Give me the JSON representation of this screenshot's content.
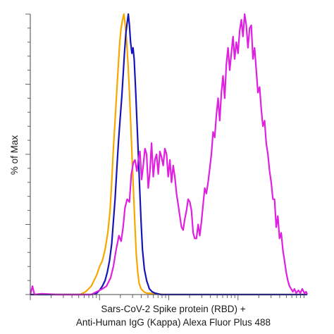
{
  "chart_data": {
    "type": "line",
    "title": "",
    "xlabel_line1": "Sars-CoV-2 Spike protein (RBD) +",
    "xlabel_line2": "Anti-Human IgG (Kappa) Alexa Fluor Plus 488",
    "ylabel": "% of Max",
    "xlim": [
      0,
      100
    ],
    "ylim": [
      0,
      100
    ],
    "x_scale": "log (unlabeled minor ticks)",
    "grid": false,
    "legend": "none",
    "series": [
      {
        "color": "#f5a800",
        "points": [
          [
            0,
            0
          ],
          [
            18,
            0
          ],
          [
            20,
            1
          ],
          [
            22,
            3
          ],
          [
            24,
            7
          ],
          [
            25,
            10
          ],
          [
            26,
            12
          ],
          [
            27,
            16
          ],
          [
            28,
            22
          ],
          [
            28.8,
            30
          ],
          [
            29.4,
            40
          ],
          [
            30,
            52
          ],
          [
            30.6,
            62
          ],
          [
            31.2,
            72
          ],
          [
            31.8,
            82
          ],
          [
            32.3,
            90
          ],
          [
            32.8,
            95
          ],
          [
            33.3,
            98
          ],
          [
            33.8,
            100
          ],
          [
            34.3,
            96
          ],
          [
            34.8,
            90
          ],
          [
            35.3,
            82
          ],
          [
            35.8,
            72
          ],
          [
            36.3,
            60
          ],
          [
            36.8,
            48
          ],
          [
            37.3,
            36
          ],
          [
            37.8,
            24
          ],
          [
            38.3,
            14
          ],
          [
            38.8,
            8
          ],
          [
            39.3,
            4
          ],
          [
            40,
            2
          ],
          [
            41,
            1
          ],
          [
            42,
            0.5
          ],
          [
            46,
            0.3
          ],
          [
            48,
            0
          ],
          [
            100,
            0
          ]
        ]
      },
      {
        "color": "#1515b8",
        "points": [
          [
            0,
            0
          ],
          [
            22,
            0
          ],
          [
            24,
            0.5
          ],
          [
            25,
            1.5
          ],
          [
            26,
            3
          ],
          [
            27,
            5
          ],
          [
            27.8,
            8
          ],
          [
            28.6,
            12
          ],
          [
            29.4,
            18
          ],
          [
            30,
            26
          ],
          [
            30.6,
            34
          ],
          [
            31.2,
            44
          ],
          [
            31.8,
            54
          ],
          [
            32.4,
            62
          ],
          [
            33,
            70
          ],
          [
            33.5,
            78
          ],
          [
            34,
            86
          ],
          [
            34.5,
            93
          ],
          [
            35,
            97
          ],
          [
            35.4,
            100
          ],
          [
            35.8,
            96
          ],
          [
            36.2,
            90
          ],
          [
            36.7,
            86
          ],
          [
            37.1,
            88
          ],
          [
            37.5,
            84
          ],
          [
            38,
            74
          ],
          [
            38.5,
            62
          ],
          [
            39,
            50
          ],
          [
            39.5,
            38
          ],
          [
            40,
            26
          ],
          [
            40.5,
            16
          ],
          [
            41.2,
            9
          ],
          [
            42,
            5
          ],
          [
            43,
            2
          ],
          [
            44,
            1
          ],
          [
            45,
            0.5
          ],
          [
            47,
            0
          ],
          [
            100,
            0
          ]
        ]
      },
      {
        "color": "#e020e0",
        "points": [
          [
            0,
            0
          ],
          [
            0.8,
            3
          ],
          [
            1.5,
            0
          ],
          [
            4,
            0.3
          ],
          [
            10,
            0
          ],
          [
            22,
            0
          ],
          [
            24,
            1
          ],
          [
            26,
            2
          ],
          [
            27.5,
            3
          ],
          [
            29,
            6
          ],
          [
            30,
            10
          ],
          [
            31,
            16
          ],
          [
            32,
            21
          ],
          [
            32.8,
            19
          ],
          [
            33.5,
            24
          ],
          [
            34.2,
            31
          ],
          [
            35,
            34
          ],
          [
            35.8,
            33
          ],
          [
            36.5,
            43
          ],
          [
            37.2,
            47
          ],
          [
            37.8,
            48
          ],
          [
            38.5,
            44
          ],
          [
            39,
            48
          ],
          [
            39.6,
            51
          ],
          [
            40.2,
            41
          ],
          [
            40.8,
            46
          ],
          [
            41.4,
            52
          ],
          [
            42,
            50
          ],
          [
            42.6,
            38
          ],
          [
            43.2,
            44
          ],
          [
            43.8,
            54
          ],
          [
            44.4,
            42
          ],
          [
            45,
            48
          ],
          [
            45.6,
            50
          ],
          [
            46.2,
            43
          ],
          [
            46.8,
            51
          ],
          [
            47.4,
            49
          ],
          [
            48,
            46
          ],
          [
            48.6,
            52
          ],
          [
            49.2,
            50
          ],
          [
            49.8,
            42
          ],
          [
            50.4,
            48
          ],
          [
            51,
            40
          ],
          [
            51.6,
            46
          ],
          [
            52.2,
            42
          ],
          [
            52.8,
            36
          ],
          [
            53.4,
            32
          ],
          [
            54,
            28
          ],
          [
            54.6,
            24
          ],
          [
            55.2,
            23
          ],
          [
            55.8,
            27
          ],
          [
            56.4,
            30
          ],
          [
            57,
            34
          ],
          [
            57.6,
            33
          ],
          [
            58.2,
            30
          ],
          [
            58.8,
            22
          ],
          [
            59.4,
            20
          ],
          [
            60,
            20
          ],
          [
            60.6,
            25
          ],
          [
            61.2,
            21
          ],
          [
            61.8,
            26
          ],
          [
            62.4,
            32
          ],
          [
            63,
            38
          ],
          [
            63.6,
            36
          ],
          [
            64.2,
            40
          ],
          [
            64.8,
            45
          ],
          [
            65.4,
            50
          ],
          [
            66,
            58
          ],
          [
            66.6,
            56
          ],
          [
            67.2,
            64
          ],
          [
            67.8,
            70
          ],
          [
            68.4,
            62
          ],
          [
            69,
            72
          ],
          [
            69.6,
            78
          ],
          [
            70.2,
            70
          ],
          [
            70.8,
            82
          ],
          [
            71.4,
            88
          ],
          [
            72,
            80
          ],
          [
            72.6,
            86
          ],
          [
            73.2,
            92
          ],
          [
            73.8,
            84
          ],
          [
            74.4,
            90
          ],
          [
            75,
            86
          ],
          [
            75.6,
            94
          ],
          [
            76.2,
            98
          ],
          [
            76.8,
            92
          ],
          [
            77.4,
            100
          ],
          [
            78,
            96
          ],
          [
            78.6,
            88
          ],
          [
            79.2,
            95
          ],
          [
            79.8,
            96
          ],
          [
            80.4,
            84
          ],
          [
            81,
            88
          ],
          [
            81.6,
            80
          ],
          [
            82.2,
            72
          ],
          [
            82.8,
            74
          ],
          [
            83.4,
            66
          ],
          [
            84,
            60
          ],
          [
            84.6,
            62
          ],
          [
            85.2,
            54
          ],
          [
            85.8,
            50
          ],
          [
            86.4,
            44
          ],
          [
            87,
            40
          ],
          [
            87.6,
            34
          ],
          [
            88.2,
            34
          ],
          [
            88.8,
            24
          ],
          [
            89.4,
            28
          ],
          [
            90,
            20
          ],
          [
            90.6,
            22
          ],
          [
            91.2,
            16
          ],
          [
            91.8,
            12
          ],
          [
            92.4,
            8
          ],
          [
            93,
            5
          ],
          [
            93.6,
            3
          ],
          [
            94.2,
            2
          ],
          [
            94.8,
            1
          ],
          [
            95.4,
            2
          ],
          [
            96,
            0.5
          ],
          [
            96.8,
            1.5
          ],
          [
            97.5,
            0.5
          ],
          [
            98.2,
            2
          ],
          [
            99,
            0.5
          ],
          [
            99.6,
            1
          ],
          [
            100,
            0
          ]
        ]
      }
    ]
  }
}
